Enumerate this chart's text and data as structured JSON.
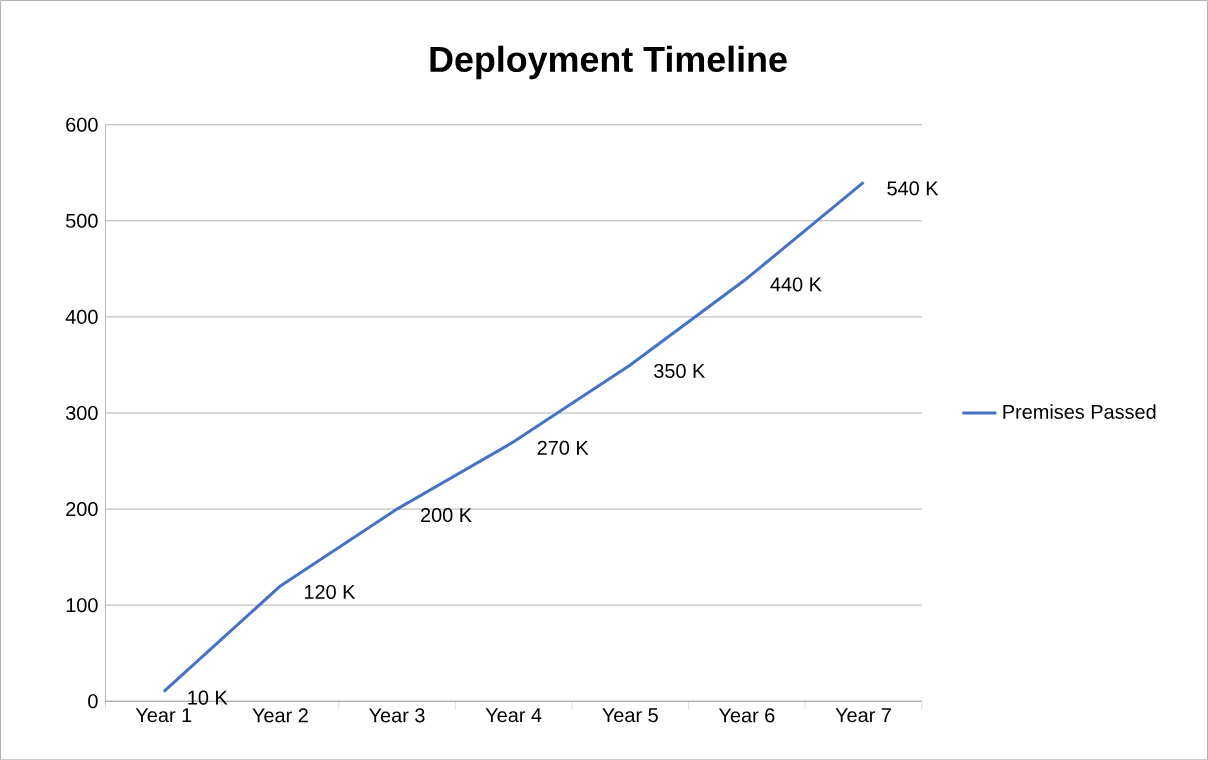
{
  "chart_data": {
    "type": "line",
    "title": "Deployment Timeline",
    "categories": [
      "Year 1",
      "Year 2",
      "Year 3",
      "Year 4",
      "Year 5",
      "Year 6",
      "Year 7"
    ],
    "series": [
      {
        "name": "Premises Passed",
        "color": "#4472c4",
        "values": [
          10,
          120,
          200,
          270,
          350,
          440,
          540
        ],
        "value_labels": [
          "10 K",
          "120 K",
          "200 K",
          "270 K",
          "350 K",
          "440 K",
          "540 K"
        ]
      }
    ],
    "ylim": [
      0,
      600
    ],
    "yticks": [
      0,
      100,
      200,
      300,
      400,
      500,
      600
    ],
    "grid": "y",
    "legend": "right",
    "marker": "none",
    "line_style": "solid"
  }
}
